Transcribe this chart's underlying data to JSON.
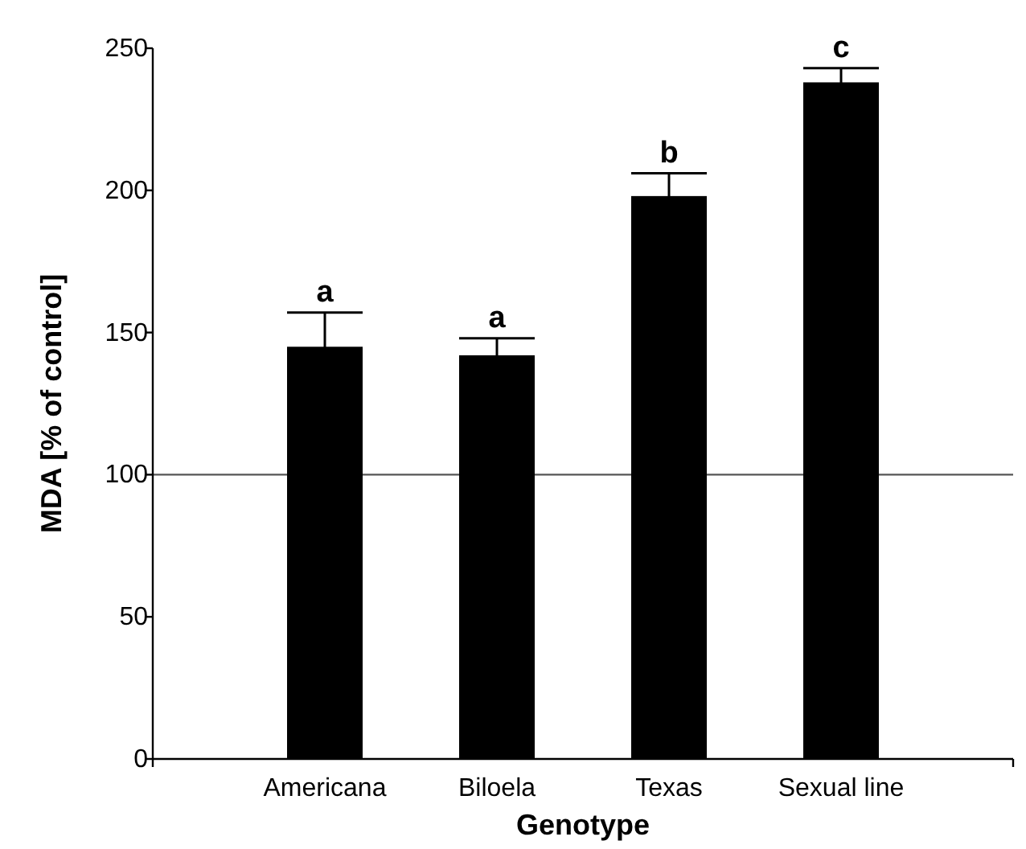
{
  "chart_data": {
    "type": "bar",
    "xlabel": "Genotype",
    "ylabel": "MDA [% of control]",
    "categories": [
      "Americana",
      "Biloela",
      "Texas",
      "Sexual line"
    ],
    "values": [
      145,
      142,
      198,
      238
    ],
    "errors": [
      12,
      6,
      8,
      5
    ],
    "color": "#000000",
    "ylim": [
      0,
      250
    ],
    "yticks": [
      0,
      50,
      100,
      150,
      200,
      250
    ],
    "ref_lines": [
      {
        "axis": "y",
        "value": 100,
        "color": "#555555"
      }
    ],
    "annotations": [
      {
        "text": "a",
        "x": "Americana",
        "y": 157
      },
      {
        "text": "a",
        "x": "Biloela",
        "y": 148
      },
      {
        "text": "b",
        "x": "Texas",
        "y": 206
      },
      {
        "text": "c",
        "x": "Sexual line",
        "y": 243
      }
    ]
  }
}
